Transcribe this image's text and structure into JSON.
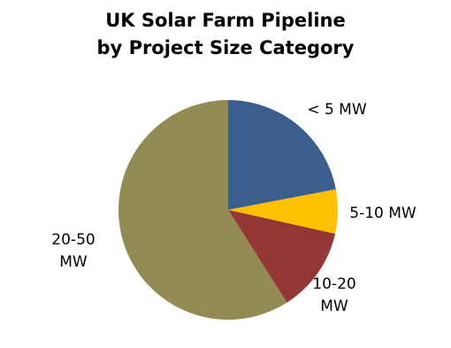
{
  "chart_data": {
    "type": "pie",
    "title": "UK Solar Farm Pipeline by Project Size Category",
    "categories": [
      "< 5 MW",
      "5-10 MW",
      "10-20 MW",
      "20-50 MW"
    ],
    "values": [
      22,
      6.5,
      12.5,
      59
    ],
    "colors": [
      "#3a5f8e",
      "#ffc000",
      "#953735",
      "#948a54"
    ]
  }
}
